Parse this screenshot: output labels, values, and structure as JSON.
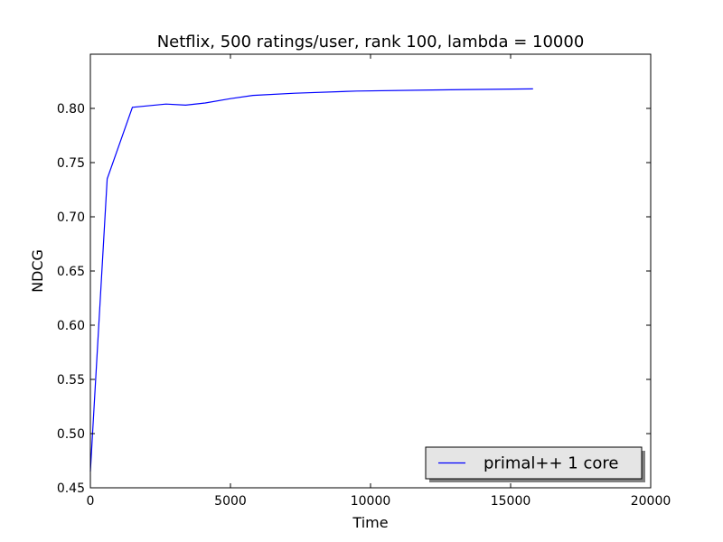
{
  "chart_data": {
    "type": "line",
    "title": "Netflix, 500 ratings/user, rank 100, lambda = 10000",
    "xlabel": "Time",
    "ylabel": "NDCG",
    "xlim": [
      0,
      20000
    ],
    "ylim": [
      0.45,
      0.85
    ],
    "xticks": [
      0,
      5000,
      10000,
      15000,
      20000
    ],
    "xtick_labels": [
      "0",
      "5000",
      "10000",
      "15000",
      "20000"
    ],
    "yticks": [
      0.45,
      0.5,
      0.55,
      0.6,
      0.65,
      0.7,
      0.75,
      0.8
    ],
    "ytick_labels": [
      "0.45",
      "0.50",
      "0.55",
      "0.60",
      "0.65",
      "0.70",
      "0.75",
      "0.80"
    ],
    "grid": false,
    "legend_position": "lower-right",
    "series": [
      {
        "name": "primal++ 1 core",
        "color": "#0000ff",
        "x": [
          0,
          600,
          1500,
          2700,
          3400,
          4100,
          5000,
          5800,
          7300,
          9500,
          12200,
          15800
        ],
        "y": [
          0.465,
          0.735,
          0.801,
          0.804,
          0.803,
          0.805,
          0.809,
          0.812,
          0.814,
          0.816,
          0.817,
          0.818
        ]
      }
    ]
  }
}
